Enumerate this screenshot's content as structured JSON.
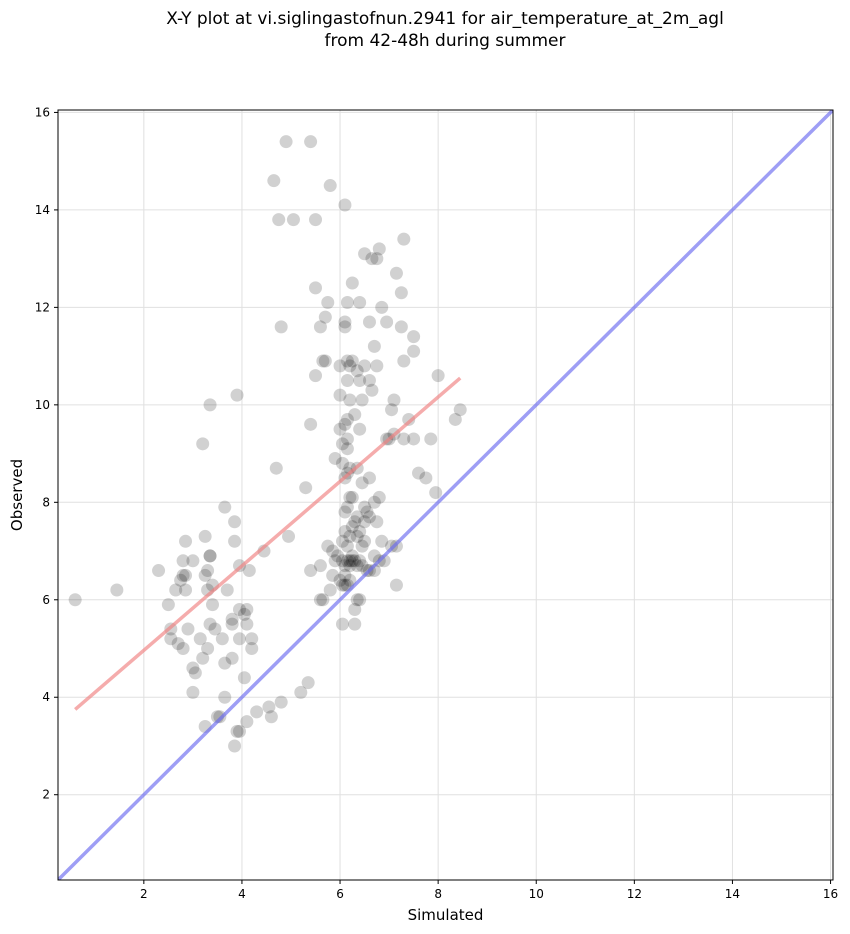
{
  "title": {
    "line1": "X-Y plot at vi.siglingastofnun.2941 for air_temperature_at_2m_agl",
    "line2": "from 42-48h during summer"
  },
  "colors": {
    "points": "#000000",
    "fit_line": "#f08080",
    "identity_line": "#6a6af0",
    "grid": "#e0e0e0"
  },
  "chart_data": {
    "type": "scatter",
    "title": "X-Y plot at vi.siglingastofnun.2941 for air_temperature_at_2m_agl from 42-48h during summer",
    "xlabel": "Simulated",
    "ylabel": "Observed",
    "xlim": [
      0.25,
      16.05
    ],
    "ylim": [
      0.25,
      16.05
    ],
    "xticks": [
      2,
      4,
      6,
      8,
      10,
      12,
      14,
      16
    ],
    "yticks": [
      2,
      4,
      6,
      8,
      10,
      12,
      14,
      16
    ],
    "grid": true,
    "lines": [
      {
        "role": "fit",
        "x": [
          0.6,
          8.45
        ],
        "y": [
          3.75,
          10.55
        ]
      },
      {
        "role": "identity",
        "x": [
          0.25,
          16.05
        ],
        "y": [
          0.25,
          16.05
        ]
      }
    ],
    "points": [
      [
        0.6,
        6.0
      ],
      [
        1.45,
        6.2
      ],
      [
        2.3,
        6.6
      ],
      [
        2.5,
        5.9
      ],
      [
        2.55,
        5.4
      ],
      [
        2.55,
        5.2
      ],
      [
        2.65,
        6.2
      ],
      [
        2.7,
        5.1
      ],
      [
        2.75,
        6.4
      ],
      [
        2.8,
        6.5
      ],
      [
        2.8,
        6.8
      ],
      [
        2.85,
        7.2
      ],
      [
        2.85,
        6.5
      ],
      [
        2.85,
        6.2
      ],
      [
        2.8,
        5.0
      ],
      [
        2.9,
        5.4
      ],
      [
        3.0,
        6.8
      ],
      [
        3.0,
        4.6
      ],
      [
        3.0,
        4.1
      ],
      [
        3.05,
        4.5
      ],
      [
        3.15,
        5.2
      ],
      [
        3.2,
        4.8
      ],
      [
        3.2,
        9.2
      ],
      [
        3.25,
        7.3
      ],
      [
        3.25,
        6.5
      ],
      [
        3.25,
        3.4
      ],
      [
        3.3,
        6.6
      ],
      [
        3.3,
        5.0
      ],
      [
        3.3,
        6.2
      ],
      [
        3.35,
        6.9
      ],
      [
        3.35,
        6.9
      ],
      [
        3.35,
        10.0
      ],
      [
        3.35,
        5.5
      ],
      [
        3.4,
        6.3
      ],
      [
        3.4,
        5.9
      ],
      [
        3.45,
        5.4
      ],
      [
        3.5,
        3.6
      ],
      [
        3.55,
        3.6
      ],
      [
        3.6,
        5.2
      ],
      [
        3.65,
        4.0
      ],
      [
        3.65,
        4.7
      ],
      [
        3.65,
        7.9
      ],
      [
        3.7,
        6.2
      ],
      [
        3.8,
        5.6
      ],
      [
        3.8,
        5.5
      ],
      [
        3.8,
        4.8
      ],
      [
        3.85,
        3.0
      ],
      [
        3.85,
        7.6
      ],
      [
        3.85,
        7.2
      ],
      [
        3.9,
        10.2
      ],
      [
        3.9,
        3.3
      ],
      [
        3.95,
        3.3
      ],
      [
        3.95,
        5.2
      ],
      [
        3.95,
        6.7
      ],
      [
        3.95,
        5.8
      ],
      [
        4.05,
        4.4
      ],
      [
        4.05,
        5.7
      ],
      [
        4.1,
        5.8
      ],
      [
        4.1,
        5.5
      ],
      [
        4.1,
        3.5
      ],
      [
        4.15,
        6.6
      ],
      [
        4.2,
        5.0
      ],
      [
        4.2,
        5.2
      ],
      [
        4.3,
        3.7
      ],
      [
        4.45,
        7.0
      ],
      [
        4.55,
        3.8
      ],
      [
        4.6,
        3.6
      ],
      [
        4.65,
        14.6
      ],
      [
        4.7,
        8.7
      ],
      [
        4.75,
        13.8
      ],
      [
        4.8,
        11.6
      ],
      [
        4.8,
        3.9
      ],
      [
        4.9,
        15.4
      ],
      [
        4.95,
        7.3
      ],
      [
        5.05,
        13.8
      ],
      [
        5.2,
        4.1
      ],
      [
        5.3,
        8.3
      ],
      [
        5.35,
        4.3
      ],
      [
        5.4,
        15.4
      ],
      [
        5.4,
        9.6
      ],
      [
        5.4,
        6.6
      ],
      [
        5.5,
        10.6
      ],
      [
        5.5,
        12.4
      ],
      [
        5.5,
        13.8
      ],
      [
        5.6,
        11.6
      ],
      [
        5.6,
        6.7
      ],
      [
        5.6,
        6.0
      ],
      [
        5.65,
        6.0
      ],
      [
        5.65,
        10.9
      ],
      [
        5.7,
        10.9
      ],
      [
        5.7,
        11.8
      ],
      [
        5.75,
        12.1
      ],
      [
        5.75,
        7.1
      ],
      [
        5.8,
        14.5
      ],
      [
        5.8,
        6.2
      ],
      [
        5.85,
        6.5
      ],
      [
        5.85,
        7.0
      ],
      [
        5.9,
        8.9
      ],
      [
        5.9,
        6.8
      ],
      [
        5.95,
        6.9
      ],
      [
        6.0,
        9.5
      ],
      [
        6.0,
        10.2
      ],
      [
        6.0,
        10.8
      ],
      [
        6.0,
        6.4
      ],
      [
        6.05,
        8.8
      ],
      [
        6.05,
        9.2
      ],
      [
        6.05,
        7.2
      ],
      [
        6.05,
        6.8
      ],
      [
        6.05,
        6.3
      ],
      [
        6.05,
        5.5
      ],
      [
        6.1,
        14.1
      ],
      [
        6.1,
        11.7
      ],
      [
        6.1,
        11.6
      ],
      [
        6.1,
        9.6
      ],
      [
        6.1,
        8.5
      ],
      [
        6.1,
        7.8
      ],
      [
        6.1,
        7.4
      ],
      [
        6.1,
        6.7
      ],
      [
        6.1,
        6.5
      ],
      [
        6.1,
        6.3
      ],
      [
        6.15,
        12.1
      ],
      [
        6.15,
        10.9
      ],
      [
        6.15,
        10.5
      ],
      [
        6.15,
        9.7
      ],
      [
        6.15,
        9.3
      ],
      [
        6.15,
        9.1
      ],
      [
        6.15,
        8.6
      ],
      [
        6.15,
        7.9
      ],
      [
        6.15,
        7.1
      ],
      [
        6.15,
        6.8
      ],
      [
        6.15,
        6.3
      ],
      [
        6.2,
        10.8
      ],
      [
        6.2,
        10.1
      ],
      [
        6.2,
        8.7
      ],
      [
        6.2,
        8.1
      ],
      [
        6.2,
        7.3
      ],
      [
        6.2,
        6.8
      ],
      [
        6.2,
        6.7
      ],
      [
        6.2,
        6.4
      ],
      [
        6.25,
        12.5
      ],
      [
        6.25,
        10.9
      ],
      [
        6.25,
        8.1
      ],
      [
        6.25,
        7.5
      ],
      [
        6.25,
        6.8
      ],
      [
        6.25,
        6.9
      ],
      [
        6.3,
        9.8
      ],
      [
        6.3,
        7.6
      ],
      [
        6.3,
        6.8
      ],
      [
        6.3,
        5.8
      ],
      [
        6.3,
        5.5
      ],
      [
        6.35,
        10.7
      ],
      [
        6.35,
        8.7
      ],
      [
        6.35,
        7.7
      ],
      [
        6.35,
        7.3
      ],
      [
        6.35,
        6.7
      ],
      [
        6.35,
        6.0
      ],
      [
        6.4,
        12.1
      ],
      [
        6.4,
        10.5
      ],
      [
        6.4,
        9.5
      ],
      [
        6.4,
        7.4
      ],
      [
        6.4,
        6.8
      ],
      [
        6.4,
        6.0
      ],
      [
        6.45,
        10.1
      ],
      [
        6.45,
        8.4
      ],
      [
        6.45,
        7.1
      ],
      [
        6.45,
        6.7
      ],
      [
        6.5,
        13.1
      ],
      [
        6.5,
        10.8
      ],
      [
        6.5,
        7.9
      ],
      [
        6.5,
        7.6
      ],
      [
        6.5,
        7.2
      ],
      [
        6.55,
        7.8
      ],
      [
        6.55,
        6.6
      ],
      [
        6.6,
        11.7
      ],
      [
        6.6,
        10.5
      ],
      [
        6.6,
        8.5
      ],
      [
        6.6,
        7.7
      ],
      [
        6.6,
        6.6
      ],
      [
        6.65,
        13.0
      ],
      [
        6.65,
        10.3
      ],
      [
        6.7,
        11.2
      ],
      [
        6.7,
        8.0
      ],
      [
        6.7,
        6.9
      ],
      [
        6.7,
        6.6
      ],
      [
        6.75,
        13.0
      ],
      [
        6.75,
        10.8
      ],
      [
        6.75,
        7.6
      ],
      [
        6.8,
        13.2
      ],
      [
        6.8,
        8.1
      ],
      [
        6.8,
        6.8
      ],
      [
        6.85,
        12.0
      ],
      [
        6.85,
        7.2
      ],
      [
        6.9,
        6.8
      ],
      [
        6.95,
        11.7
      ],
      [
        6.95,
        9.3
      ],
      [
        7.0,
        9.3
      ],
      [
        7.05,
        9.9
      ],
      [
        7.05,
        7.1
      ],
      [
        7.1,
        10.1
      ],
      [
        7.1,
        9.4
      ],
      [
        7.15,
        6.3
      ],
      [
        7.15,
        7.1
      ],
      [
        7.15,
        12.7
      ],
      [
        7.25,
        12.3
      ],
      [
        7.25,
        11.6
      ],
      [
        7.3,
        13.4
      ],
      [
        7.3,
        10.9
      ],
      [
        7.3,
        9.3
      ],
      [
        7.4,
        9.7
      ],
      [
        7.5,
        11.4
      ],
      [
        7.5,
        11.1
      ],
      [
        7.5,
        9.3
      ],
      [
        7.6,
        8.6
      ],
      [
        7.75,
        8.5
      ],
      [
        7.85,
        9.3
      ],
      [
        7.95,
        8.2
      ],
      [
        8.0,
        10.6
      ],
      [
        8.35,
        9.7
      ],
      [
        8.45,
        9.9
      ]
    ]
  }
}
